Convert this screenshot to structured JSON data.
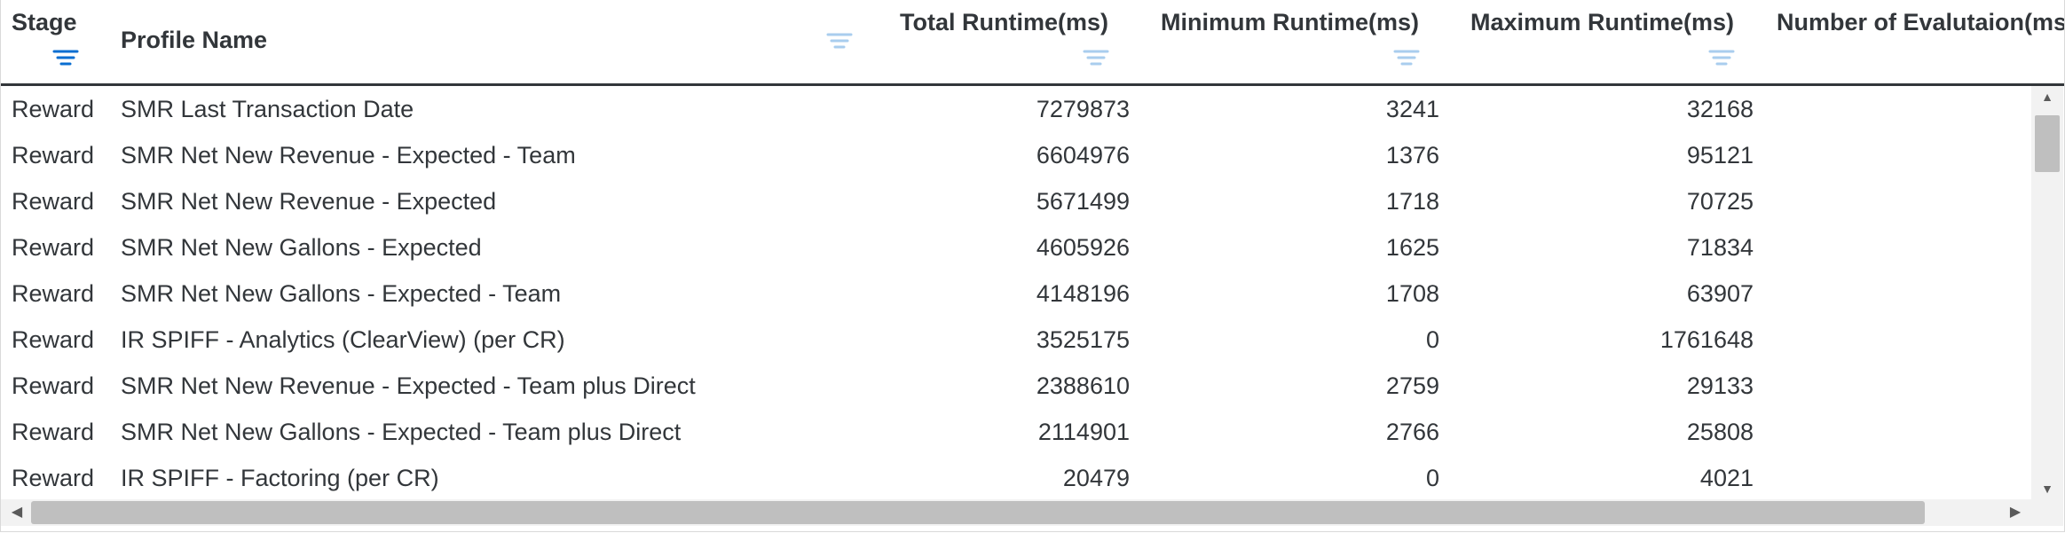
{
  "columns": {
    "stage": "Stage",
    "profile_name": "Profile Name",
    "total_runtime": "Total Runtime(ms)",
    "minimum_runtime": "Minimum Runtime(ms)",
    "maximum_runtime": "Maximum Runtime(ms)",
    "evaluations": "Number of Evalutaion(ms"
  },
  "colors": {
    "active_filter": "#0a6ed1",
    "inactive_filter": "#a9cdee",
    "header_border": "#32363a",
    "scrollbar_thumb": "#bfbfbf"
  },
  "rows": [
    {
      "stage": "Reward",
      "profile": "SMR Last Transaction Date",
      "total": "7279873",
      "min": "3241",
      "max": "32168"
    },
    {
      "stage": "Reward",
      "profile": "SMR Net New Revenue - Expected - Team",
      "total": "6604976",
      "min": "1376",
      "max": "95121"
    },
    {
      "stage": "Reward",
      "profile": "SMR Net New Revenue - Expected",
      "total": "5671499",
      "min": "1718",
      "max": "70725"
    },
    {
      "stage": "Reward",
      "profile": "SMR Net New Gallons - Expected",
      "total": "4605926",
      "min": "1625",
      "max": "71834"
    },
    {
      "stage": "Reward",
      "profile": "SMR Net New Gallons - Expected - Team",
      "total": "4148196",
      "min": "1708",
      "max": "63907"
    },
    {
      "stage": "Reward",
      "profile": "IR SPIFF - Analytics (ClearView) (per CR)",
      "total": "3525175",
      "min": "0",
      "max": "1761648"
    },
    {
      "stage": "Reward",
      "profile": "SMR Net New Revenue - Expected - Team plus Direct",
      "total": "2388610",
      "min": "2759",
      "max": "29133"
    },
    {
      "stage": "Reward",
      "profile": "SMR Net New Gallons - Expected - Team plus Direct",
      "total": "2114901",
      "min": "2766",
      "max": "25808"
    },
    {
      "stage": "Reward",
      "profile": "IR SPIFF - Factoring (per CR)",
      "total": "20479",
      "min": "0",
      "max": "4021"
    }
  ]
}
